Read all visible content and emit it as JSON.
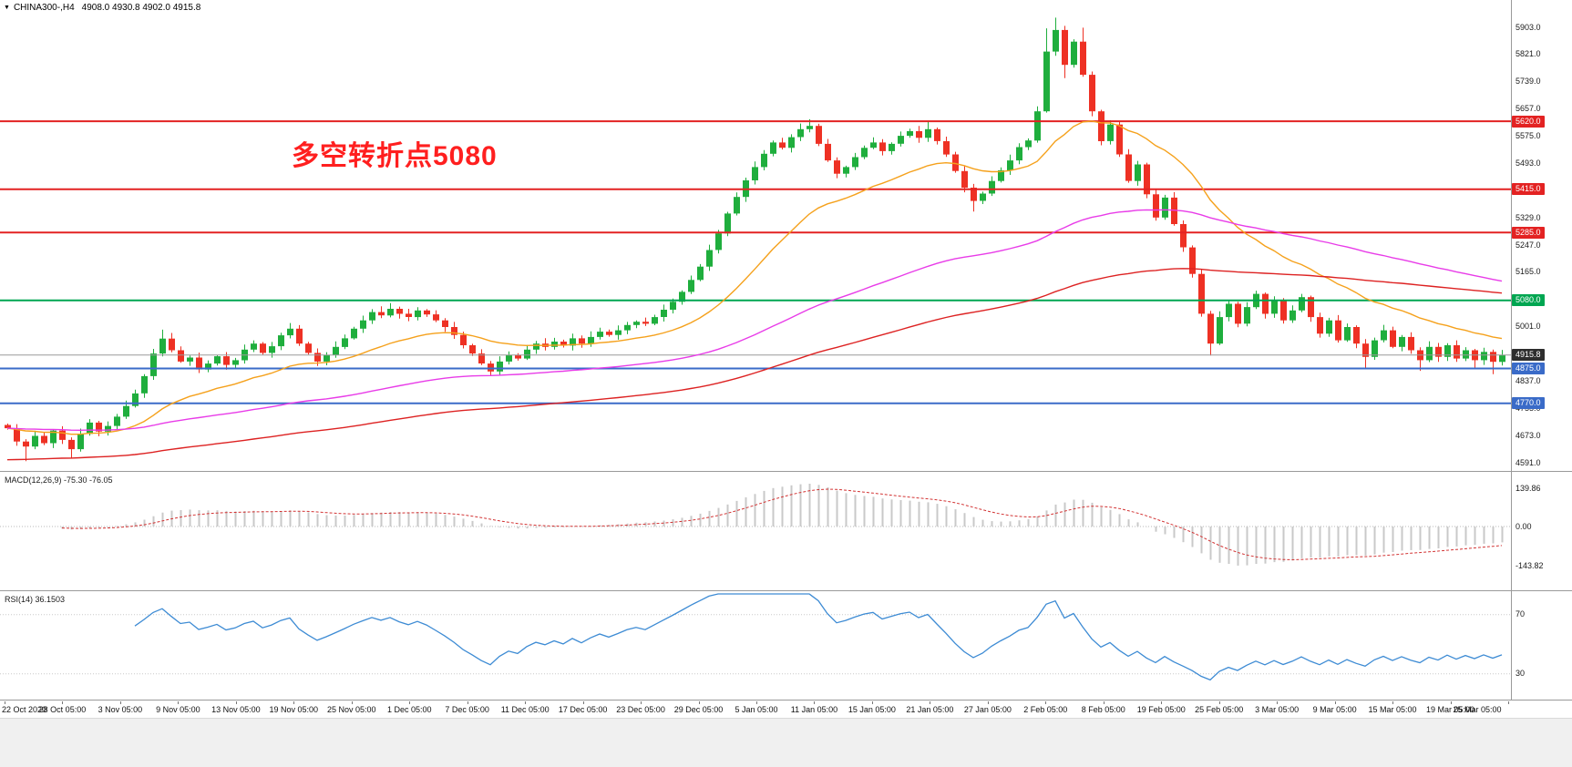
{
  "icons": {
    "collapse": "▼"
  },
  "header": {
    "symbol_period": "CHINA300-,H4",
    "ohlc": "4908.0 4930.8 4902.0 4915.8"
  },
  "annotation": {
    "text": "多空转折点5080",
    "color": "#ff1f1f"
  },
  "chart_data": {
    "type": "candlestick",
    "symbol": "CHINA300-",
    "timeframe": "H4",
    "current_bar": {
      "open": 4908.0,
      "high": 4930.8,
      "low": 4902.0,
      "close": 4915.8
    },
    "price_axis": {
      "top_value": 5903,
      "bottom_value": 4591,
      "labels": [
        "5903.0",
        "5821.0",
        "5739.0",
        "5657.0",
        "5575.0",
        "5493.0",
        "5411.0",
        "5329.0",
        "5247.0",
        "5165.0",
        "5083.0",
        "5001.0",
        "4919.0",
        "4837.0",
        "4755.0",
        "4673.0",
        "4591.0"
      ]
    },
    "time_labels": [
      "22 Oct 2020",
      "28 Oct 05:00",
      "3 Nov 05:00",
      "9 Nov 05:00",
      "13 Nov 05:00",
      "19 Nov 05:00",
      "25 Nov 05:00",
      "1 Dec 05:00",
      "7 Dec 05:00",
      "11 Dec 05:00",
      "17 Dec 05:00",
      "23 Dec 05:00",
      "29 Dec 05:00",
      "5 Jan 05:00",
      "11 Jan 05:00",
      "15 Jan 05:00",
      "21 Jan 05:00",
      "27 Jan 05:00",
      "2 Feb 05:00",
      "8 Feb 05:00",
      "19 Feb 05:00",
      "25 Feb 05:00",
      "3 Mar 05:00",
      "9 Mar 05:00",
      "15 Mar 05:00",
      "19 Mar 05:00",
      "25 Mar 05:00"
    ],
    "horizontal_levels": [
      {
        "value": 5620.0,
        "label": "5620.0",
        "line_color": "#e32222",
        "badge_color": "#e32222",
        "line_width": 2
      },
      {
        "value": 5415.0,
        "label": "5415.0",
        "line_color": "#e32222",
        "badge_color": "#e32222",
        "line_width": 2
      },
      {
        "value": 5285.0,
        "label": "5285.0",
        "line_color": "#e32222",
        "badge_color": "#e32222",
        "line_width": 2
      },
      {
        "value": 5080.0,
        "label": "5080.0",
        "line_color": "#00a651",
        "badge_color": "#00a651",
        "line_width": 2
      },
      {
        "value": 4915.8,
        "label": "4915.8",
        "line_color": "#999999",
        "badge_color": "#2e2e2e",
        "line_width": 1
      },
      {
        "value": 4875.0,
        "label": "4875.0",
        "line_color": "#3a6bc8",
        "badge_color": "#3a6bc8",
        "line_width": 2
      },
      {
        "value": 4770.0,
        "label": "4770.0",
        "line_color": "#3a6bc8",
        "badge_color": "#3a6bc8",
        "line_width": 2
      }
    ],
    "candles": {
      "up_color": "#1fae3d",
      "down_color": "#ee3124",
      "first_open": 4705,
      "closes": [
        4695,
        4655,
        4640,
        4672,
        4650,
        4688,
        4660,
        4632,
        4678,
        4712,
        4685,
        4702,
        4730,
        4762,
        4800,
        4852,
        4920,
        4965,
        4930,
        4896,
        4908,
        4872,
        4890,
        4912,
        4886,
        4900,
        4932,
        4950,
        4922,
        4942,
        4975,
        4995,
        4950,
        4922,
        4896,
        4916,
        4940,
        4966,
        4995,
        5020,
        5045,
        5035,
        5055,
        5040,
        5030,
        5050,
        5038,
        5020,
        5000,
        4976,
        4945,
        4920,
        4890,
        4866,
        4896,
        4916,
        4905,
        4932,
        4950,
        4940,
        4956,
        4944,
        4966,
        4950,
        4970,
        4986,
        4976,
        4990,
        5006,
        5016,
        5010,
        5030,
        5052,
        5076,
        5106,
        5142,
        5182,
        5232,
        5282,
        5342,
        5392,
        5442,
        5482,
        5522,
        5556,
        5540,
        5572,
        5596,
        5606,
        5552,
        5502,
        5462,
        5482,
        5512,
        5540,
        5556,
        5530,
        5552,
        5576,
        5590,
        5570,
        5596,
        5560,
        5520,
        5470,
        5420,
        5380,
        5402,
        5440,
        5472,
        5502,
        5542,
        5562,
        5650,
        5830,
        5895,
        5790,
        5860,
        5760,
        5650,
        5560,
        5610,
        5520,
        5440,
        5490,
        5400,
        5330,
        5390,
        5310,
        5240,
        5160,
        5040,
        4950,
        5030,
        5070,
        5010,
        5060,
        5100,
        5040,
        5080,
        5020,
        5050,
        5090,
        5030,
        4980,
        5020,
        4960,
        5000,
        4950,
        4910,
        4960,
        4990,
        4940,
        4970,
        4930,
        4900,
        4940,
        4910,
        4945,
        4905,
        4930,
        4900,
        4925,
        4895,
        4915.8
      ],
      "wick_overrides": {
        "2": {
          "low": 4596
        },
        "7": {
          "low": 4604
        },
        "17": {
          "high": 4992
        },
        "31": {
          "high": 5012
        },
        "42": {
          "high": 5072
        },
        "53": {
          "low": 4852
        },
        "88": {
          "high": 5626
        },
        "101": {
          "high": 5618
        },
        "106": {
          "low": 5348
        },
        "114": {
          "high": 5900
        },
        "115": {
          "high": 5932
        },
        "116": {
          "low": 5750
        },
        "118": {
          "high": 5902
        },
        "132": {
          "low": 4914
        },
        "149": {
          "low": 4876
        },
        "155": {
          "low": 4868
        },
        "161": {
          "low": 4874
        },
        "163": {
          "low": 4858
        },
        "164": {
          "low": 4884
        }
      }
    },
    "moving_averages": [
      {
        "name": "fast",
        "period": 22,
        "color": "#f5a11c"
      },
      {
        "name": "medium",
        "period": 85,
        "color": "#e83ce8"
      },
      {
        "name": "slow",
        "period": 150,
        "seed": 4600,
        "color": "#dd2222"
      }
    ],
    "indicators": {
      "macd": {
        "label": "MACD(12,26,9) -75.30 -76.05",
        "params": [
          12,
          26,
          9
        ],
        "current_values": [
          -75.3,
          -76.05
        ],
        "axis_labels": [
          "139.86",
          "0.00",
          "-143.82"
        ],
        "histogram_color": "#c9c9c9",
        "signal_color": "#d23333"
      },
      "rsi": {
        "label": "RSI(14) 36.1503",
        "period": 14,
        "current_value": 36.1503,
        "levels": [
          70,
          30
        ],
        "line_color": "#3d8bd4"
      }
    }
  }
}
